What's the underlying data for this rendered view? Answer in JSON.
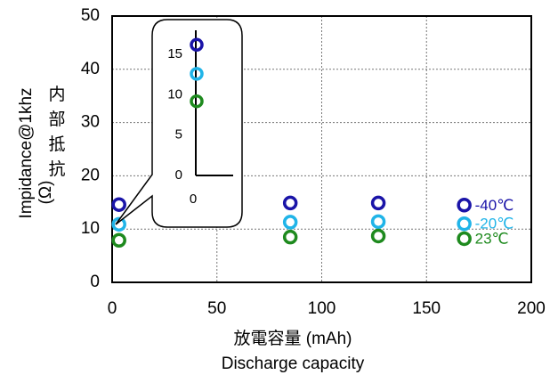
{
  "chart_data": {
    "type": "scatter",
    "xlabel": [
      "放電容量 (mAh)",
      "Discharge capacity"
    ],
    "ylabel": [
      "Impidance@1khz",
      "(Ω)",
      "内",
      "部",
      "抵",
      "抗"
    ],
    "xlim": [
      0,
      200
    ],
    "ylim": [
      0,
      50
    ],
    "x_ticks": [
      "0",
      "50",
      "100",
      "150",
      "200"
    ],
    "y_ticks": [
      "0",
      "10",
      "20",
      "30",
      "40",
      "50"
    ],
    "grid": true,
    "series": [
      {
        "name": "-40℃",
        "color": "#1a14a8",
        "x": [
          2,
          85,
          127,
          168
        ],
        "y": [
          14.6,
          14.9,
          14.9,
          14.5
        ]
      },
      {
        "name": "-20℃",
        "color": "#20b4e8",
        "x": [
          2,
          85,
          127,
          168
        ],
        "y": [
          10.9,
          11.3,
          11.4,
          11.0
        ]
      },
      {
        "name": "23℃",
        "color": "#1e8a1e",
        "x": [
          2,
          85,
          127,
          168
        ],
        "y": [
          7.9,
          8.5,
          8.7,
          8.2
        ]
      }
    ],
    "inset": {
      "x_ticks": [
        "0"
      ],
      "y_ticks": [
        "0",
        "5",
        "10",
        "15"
      ],
      "ylim": [
        0,
        18
      ],
      "values": [
        16.2,
        12.6,
        9.2
      ]
    }
  }
}
